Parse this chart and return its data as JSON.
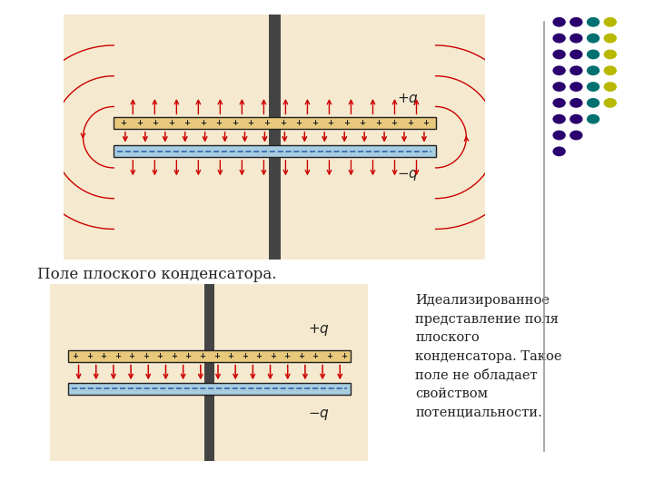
{
  "bg_color": "#f5ead0",
  "white_bg": "#ffffff",
  "field_line_color": "#cc0000",
  "title1": "Поле плоского конденсатора.",
  "text2": "Идеализированное\nпредставление поля\nплоского\nконденсатора. Такое\nполе не обладает\nсвойством\nпотенциальности.",
  "dot_colors_by_col": [
    "#2a006e",
    "#2a006e",
    "#007070",
    "#b8b800",
    "#c0c0c0"
  ],
  "rows_cols": [
    4,
    4,
    4,
    4,
    4,
    4,
    3,
    2,
    1
  ]
}
